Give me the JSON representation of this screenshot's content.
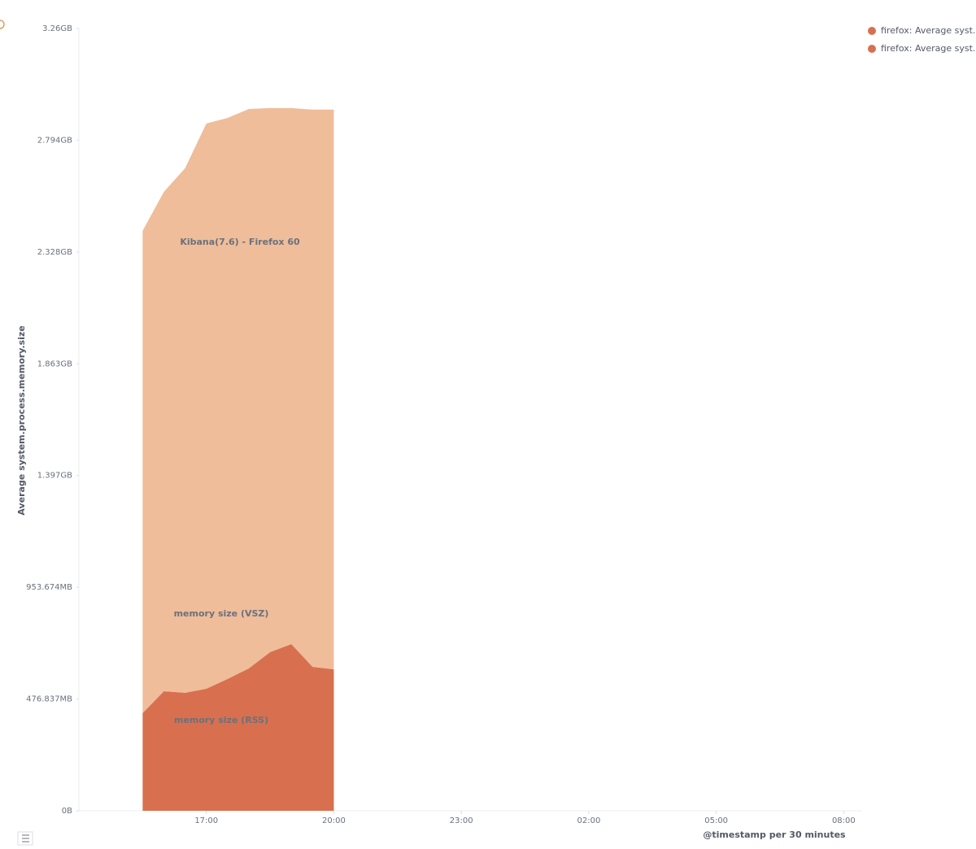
{
  "chart_data": {
    "type": "area",
    "stacked": true,
    "x_label": "@timestamp per 30 minutes",
    "y_label": "Average system.process.memory.size",
    "x": [
      "15:30",
      "16:00",
      "16:30",
      "17:00",
      "17:30",
      "18:00",
      "18:30",
      "19:00",
      "19:30",
      "20:00"
    ],
    "series": [
      {
        "name": "firefox: Average syst...",
        "color": "#d8704f",
        "values": [
          437000000,
          535000000,
          528000000,
          546000000,
          590000000,
          637000000,
          710000000,
          746000000,
          644000000,
          633000000
        ]
      },
      {
        "name": "firefox: Average syst...",
        "color": "#efbd9a",
        "values": [
          2158000000,
          2234000000,
          2347000000,
          2529000000,
          2510000000,
          2503000000,
          2434000000,
          2398000000,
          2493000000,
          2504000000
        ]
      }
    ],
    "annotations": [
      "Kibana(7.6) - Firefox 60",
      "memory size (VSZ)",
      "memory size (RSS)"
    ],
    "xlim": [
      "14:00",
      "08:26"
    ],
    "xticks": [
      "17:00",
      "20:00",
      "23:00",
      "02:00",
      "05:00",
      "08:00"
    ],
    "ylim": [
      0,
      3500000000
    ],
    "yticks": [
      {
        "value": 0,
        "label": "0B"
      },
      {
        "value": 500000000,
        "label": "476.837MB"
      },
      {
        "value": 1000000000,
        "label": "953.674MB"
      },
      {
        "value": 1500000000,
        "label": "1.397GB"
      },
      {
        "value": 2000000000,
        "label": "1.863GB"
      },
      {
        "value": 2500000000,
        "label": "2.328GB"
      },
      {
        "value": 3000000000,
        "label": "2.794GB"
      },
      {
        "value": 3500000000,
        "label": "3.26GB"
      }
    ],
    "legend": "top-right"
  }
}
